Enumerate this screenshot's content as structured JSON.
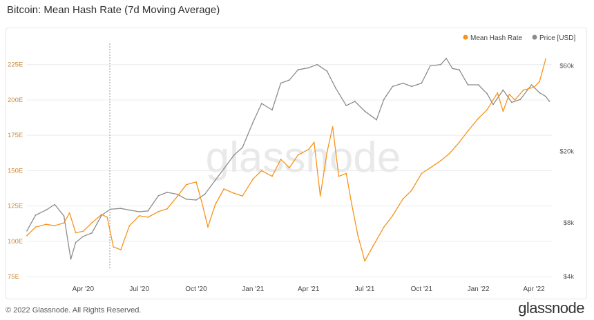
{
  "title": "Bitcoin: Mean Hash Rate (7d Moving Average)",
  "watermark": "glassnode",
  "footer": {
    "copyright": "© 2022 Glassnode. All Rights Reserved.",
    "brand": "glassnode"
  },
  "colors": {
    "hash_rate": "#f7931a",
    "price": "#8c8c8c",
    "grid": "#ececec",
    "axis_text": "#c98a3a",
    "price_axis_text": "#555555"
  },
  "chart_data": {
    "type": "line",
    "title": "Bitcoin: Mean Hash Rate (7d Moving Average)",
    "legend": {
      "placement": "top-right",
      "entries": [
        "Mean Hash Rate",
        "Price [USD]"
      ]
    },
    "x_ticks": [
      "Apr '20",
      "Jul '20",
      "Oct '20",
      "Jan '21",
      "Apr '21",
      "Jul '21",
      "Oct '21",
      "Jan '22",
      "Apr '22"
    ],
    "x_range": [
      "2020-01-01",
      "2022-04-30"
    ],
    "y_left": {
      "ticks": [
        "75E",
        "100E",
        "125E",
        "150E",
        "175E",
        "200E",
        "225E"
      ],
      "range": [
        75,
        240
      ]
    },
    "y_right": {
      "ticks": [
        "$4k",
        "$8k",
        "$20k",
        "$60k"
      ],
      "scale": "log",
      "range": [
        4000,
        80000
      ]
    },
    "grid": true,
    "series": [
      {
        "name": "Mean Hash Rate",
        "axis": "left",
        "points": [
          [
            "2020-01-01",
            104
          ],
          [
            "2020-01-15",
            110
          ],
          [
            "2020-02-01",
            112
          ],
          [
            "2020-02-15",
            111
          ],
          [
            "2020-03-01",
            113
          ],
          [
            "2020-03-10",
            120
          ],
          [
            "2020-03-20",
            106
          ],
          [
            "2020-04-01",
            107
          ],
          [
            "2020-04-15",
            113
          ],
          [
            "2020-05-01",
            119
          ],
          [
            "2020-05-10",
            117
          ],
          [
            "2020-05-20",
            96
          ],
          [
            "2020-06-01",
            94
          ],
          [
            "2020-06-15",
            111
          ],
          [
            "2020-07-01",
            118
          ],
          [
            "2020-07-15",
            117
          ],
          [
            "2020-08-01",
            121
          ],
          [
            "2020-08-15",
            123
          ],
          [
            "2020-09-01",
            132
          ],
          [
            "2020-09-15",
            140
          ],
          [
            "2020-10-01",
            142
          ],
          [
            "2020-10-10",
            128
          ],
          [
            "2020-10-20",
            110
          ],
          [
            "2020-11-01",
            126
          ],
          [
            "2020-11-15",
            137
          ],
          [
            "2020-12-01",
            134
          ],
          [
            "2020-12-15",
            132
          ],
          [
            "2021-01-01",
            144
          ],
          [
            "2021-01-15",
            150
          ],
          [
            "2021-02-01",
            146
          ],
          [
            "2021-02-15",
            158
          ],
          [
            "2021-03-01",
            152
          ],
          [
            "2021-03-15",
            161
          ],
          [
            "2021-04-01",
            165
          ],
          [
            "2021-04-10",
            170
          ],
          [
            "2021-04-20",
            132
          ],
          [
            "2021-05-01",
            163
          ],
          [
            "2021-05-10",
            181
          ],
          [
            "2021-05-20",
            146
          ],
          [
            "2021-06-01",
            148
          ],
          [
            "2021-06-10",
            126
          ],
          [
            "2021-06-20",
            104
          ],
          [
            "2021-07-01",
            86
          ],
          [
            "2021-07-15",
            97
          ],
          [
            "2021-08-01",
            110
          ],
          [
            "2021-08-15",
            118
          ],
          [
            "2021-09-01",
            130
          ],
          [
            "2021-09-15",
            136
          ],
          [
            "2021-10-01",
            148
          ],
          [
            "2021-10-15",
            152
          ],
          [
            "2021-11-01",
            157
          ],
          [
            "2021-11-15",
            162
          ],
          [
            "2021-12-01",
            170
          ],
          [
            "2021-12-15",
            178
          ],
          [
            "2022-01-01",
            187
          ],
          [
            "2022-01-15",
            193
          ],
          [
            "2022-02-01",
            205
          ],
          [
            "2022-02-10",
            192
          ],
          [
            "2022-02-20",
            204
          ],
          [
            "2022-03-01",
            200
          ],
          [
            "2022-03-15",
            207
          ],
          [
            "2022-04-01",
            209
          ],
          [
            "2022-04-10",
            213
          ],
          [
            "2022-04-20",
            229
          ]
        ]
      },
      {
        "name": "Price [USD]",
        "axis": "right",
        "points": [
          [
            "2020-01-01",
            7200
          ],
          [
            "2020-01-15",
            8800
          ],
          [
            "2020-02-01",
            9400
          ],
          [
            "2020-02-15",
            10100
          ],
          [
            "2020-03-01",
            8700
          ],
          [
            "2020-03-12",
            5000
          ],
          [
            "2020-03-20",
            6200
          ],
          [
            "2020-04-01",
            6700
          ],
          [
            "2020-04-15",
            7000
          ],
          [
            "2020-05-01",
            8800
          ],
          [
            "2020-05-15",
            9500
          ],
          [
            "2020-06-01",
            9600
          ],
          [
            "2020-06-15",
            9400
          ],
          [
            "2020-07-01",
            9200
          ],
          [
            "2020-07-15",
            9300
          ],
          [
            "2020-08-01",
            11300
          ],
          [
            "2020-08-15",
            11800
          ],
          [
            "2020-09-01",
            11500
          ],
          [
            "2020-09-15",
            10800
          ],
          [
            "2020-10-01",
            10700
          ],
          [
            "2020-10-15",
            11500
          ],
          [
            "2020-11-01",
            13800
          ],
          [
            "2020-11-15",
            16000
          ],
          [
            "2020-12-01",
            19000
          ],
          [
            "2020-12-15",
            21000
          ],
          [
            "2021-01-01",
            29000
          ],
          [
            "2021-01-15",
            37000
          ],
          [
            "2021-02-01",
            34000
          ],
          [
            "2021-02-15",
            48000
          ],
          [
            "2021-03-01",
            50000
          ],
          [
            "2021-03-15",
            57000
          ],
          [
            "2021-04-01",
            58500
          ],
          [
            "2021-04-15",
            61000
          ],
          [
            "2021-05-01",
            56000
          ],
          [
            "2021-05-15",
            45000
          ],
          [
            "2021-06-01",
            36000
          ],
          [
            "2021-06-15",
            38000
          ],
          [
            "2021-07-01",
            33500
          ],
          [
            "2021-07-20",
            30000
          ],
          [
            "2021-08-01",
            39000
          ],
          [
            "2021-08-15",
            46000
          ],
          [
            "2021-09-01",
            48000
          ],
          [
            "2021-09-15",
            46000
          ],
          [
            "2021-10-01",
            48000
          ],
          [
            "2021-10-15",
            60000
          ],
          [
            "2021-11-01",
            61000
          ],
          [
            "2021-11-10",
            66000
          ],
          [
            "2021-11-20",
            58000
          ],
          [
            "2021-12-01",
            57000
          ],
          [
            "2021-12-15",
            47000
          ],
          [
            "2022-01-01",
            47000
          ],
          [
            "2022-01-15",
            42000
          ],
          [
            "2022-01-25",
            36500
          ],
          [
            "2022-02-10",
            44000
          ],
          [
            "2022-02-24",
            37500
          ],
          [
            "2022-03-10",
            39000
          ],
          [
            "2022-03-28",
            47000
          ],
          [
            "2022-04-10",
            42500
          ],
          [
            "2022-04-20",
            40500
          ],
          [
            "2022-04-26",
            38000
          ]
        ]
      }
    ]
  }
}
